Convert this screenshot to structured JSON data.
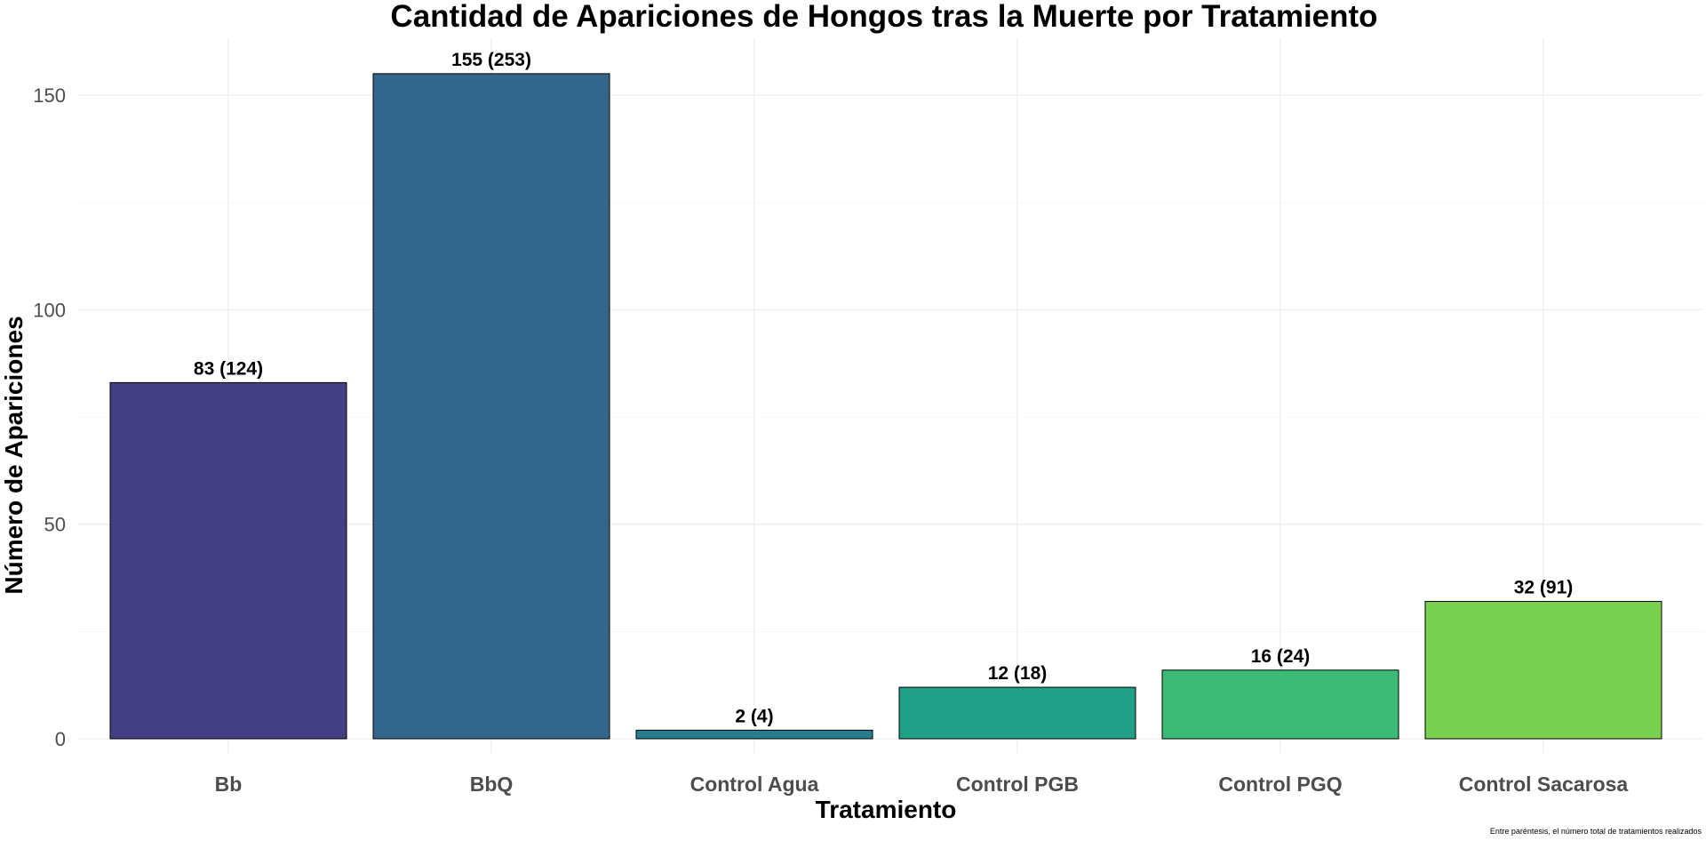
{
  "chart_data": {
    "type": "bar",
    "title": "Cantidad de Apariciones de Hongos tras la Muerte por Tratamiento",
    "xlabel": "Tratamiento",
    "ylabel": "Número de Apariciones",
    "caption": "Entre paréntesis, el número total de tratamientos realizados",
    "categories": [
      "Bb",
      "BbQ",
      "Control Agua",
      "Control PGB",
      "Control PGQ",
      "Control Sacarosa"
    ],
    "values": [
      83,
      155,
      2,
      12,
      16,
      32
    ],
    "data_labels": [
      "83 (124)",
      "155 (253)",
      "2 (4)",
      "12 (18)",
      "16 (24)",
      "32 (91)"
    ],
    "colors": [
      "#443F84",
      "#33668B",
      "#277C8E",
      "#20A087",
      "#3BBB75",
      "#7AD151"
    ],
    "yticks": [
      0,
      50,
      100,
      150
    ],
    "ylim": [
      0,
      162
    ],
    "grid": true,
    "legend": "none"
  }
}
